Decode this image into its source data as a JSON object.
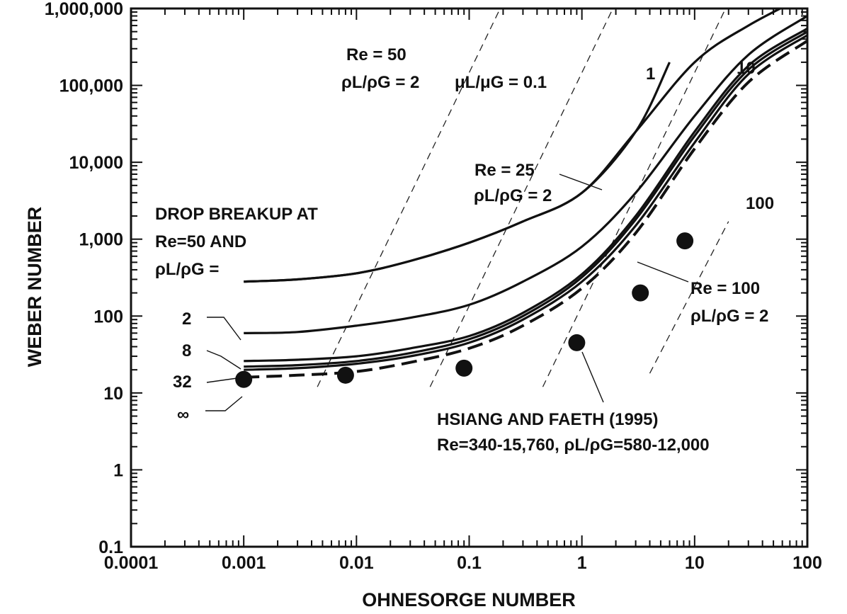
{
  "chart_data": {
    "type": "line",
    "xlabel": "OHNESORGE NUMBER",
    "ylabel": "WEBER NUMBER",
    "xscale": "log",
    "yscale": "log",
    "xlim": [
      0.0001,
      100
    ],
    "ylim": [
      0.1,
      1000000
    ],
    "x_tick_labels": [
      "0.0001",
      "0.001",
      "0.01",
      "0.1",
      "1",
      "10",
      "100"
    ],
    "y_tick_labels": [
      "0.1",
      "1",
      "10",
      "100",
      "1,000",
      "10,000",
      "100,000",
      "1,000,000"
    ],
    "series": [
      {
        "name": "Re = 50, ρL/ρG = 2",
        "style": "solid",
        "x": [
          0.001,
          0.003,
          0.01,
          0.03,
          0.1,
          0.3,
          1,
          3,
          6
        ],
        "y": [
          280,
          300,
          360,
          520,
          900,
          1700,
          4000,
          25000,
          200000
        ]
      },
      {
        "name": "Re = 25, ρL/ρG = 2",
        "style": "solid",
        "x": [
          0.001,
          0.003,
          0.01,
          0.03,
          0.1,
          0.3,
          1,
          3,
          10,
          30,
          100
        ],
        "y": [
          280,
          300,
          360,
          520,
          900,
          1700,
          4000,
          25000,
          200000,
          600000,
          1500000
        ]
      },
      {
        "name": "2",
        "style": "solid",
        "x": [
          0.001,
          0.003,
          0.01,
          0.03,
          0.1,
          0.3,
          1,
          3,
          10,
          30,
          100
        ],
        "y": [
          60,
          62,
          75,
          95,
          140,
          280,
          800,
          4000,
          40000,
          250000,
          800000
        ]
      },
      {
        "name": "8",
        "style": "solid",
        "x": [
          0.001,
          0.003,
          0.01,
          0.03,
          0.1,
          0.3,
          1,
          3,
          10,
          30,
          100
        ],
        "y": [
          26,
          27,
          30,
          38,
          55,
          110,
          350,
          2000,
          25000,
          180000,
          550000
        ]
      },
      {
        "name": "32",
        "style": "solid",
        "x": [
          0.001,
          0.003,
          0.01,
          0.03,
          0.1,
          0.3,
          1,
          3,
          10,
          30,
          100
        ],
        "y": [
          22,
          23,
          26,
          33,
          50,
          100,
          320,
          1800,
          22000,
          160000,
          500000
        ]
      },
      {
        "name": "Re = 100, ρL/ρG = 2",
        "style": "solid",
        "x": [
          0.001,
          0.003,
          0.01,
          0.03,
          0.1,
          0.3,
          1,
          3,
          10,
          30,
          100
        ],
        "y": [
          20,
          21,
          24,
          30,
          45,
          90,
          280,
          1500,
          18000,
          140000,
          450000
        ]
      },
      {
        "name": "∞",
        "style": "dashed",
        "x": [
          0.001,
          0.003,
          0.01,
          0.03,
          0.1,
          0.3,
          1,
          3,
          10,
          30,
          100
        ],
        "y": [
          16,
          17,
          19,
          25,
          38,
          75,
          230,
          1200,
          15000,
          110000,
          380000
        ]
      }
    ],
    "viscosity_lines": [
      {
        "label": "μL/μG = 0.1",
        "x": [
          0.0045,
          0.2
        ],
        "y": [
          12,
          1200000
        ]
      },
      {
        "label": "1",
        "x": [
          0.045,
          2
        ],
        "y": [
          12,
          1200000
        ]
      },
      {
        "label": "10",
        "x": [
          0.45,
          20
        ],
        "y": [
          12,
          1200000
        ]
      },
      {
        "label": "100",
        "x": [
          4,
          20
        ],
        "y": [
          18,
          1700
        ]
      }
    ],
    "scatter": {
      "name": "HSIANG AND FAETH (1995)",
      "x": [
        0.001,
        0.008,
        0.09,
        0.9,
        3.3,
        8.2
      ],
      "y": [
        15,
        17,
        21,
        45,
        200,
        950
      ]
    },
    "annotations": {
      "re50": [
        "Re = 50",
        "ρL/ρG = 2"
      ],
      "visc": "μL/μG = 0.1",
      "v1": "1",
      "v10": "10",
      "v100": "100",
      "re25": [
        "Re = 25",
        "ρL/ρG = 2"
      ],
      "re100": [
        "Re = 100",
        "ρL/ρG = 2"
      ],
      "drop": [
        "DROP BREAKUP AT",
        "Re=50 AND",
        "ρL/ρG ="
      ],
      "ratio_labels": [
        "2",
        "8",
        "32",
        "∞"
      ],
      "hsiang": [
        "HSIANG AND FAETH (1995)",
        "Re=340-15,760, ρL/ρG=580-12,000"
      ]
    }
  }
}
